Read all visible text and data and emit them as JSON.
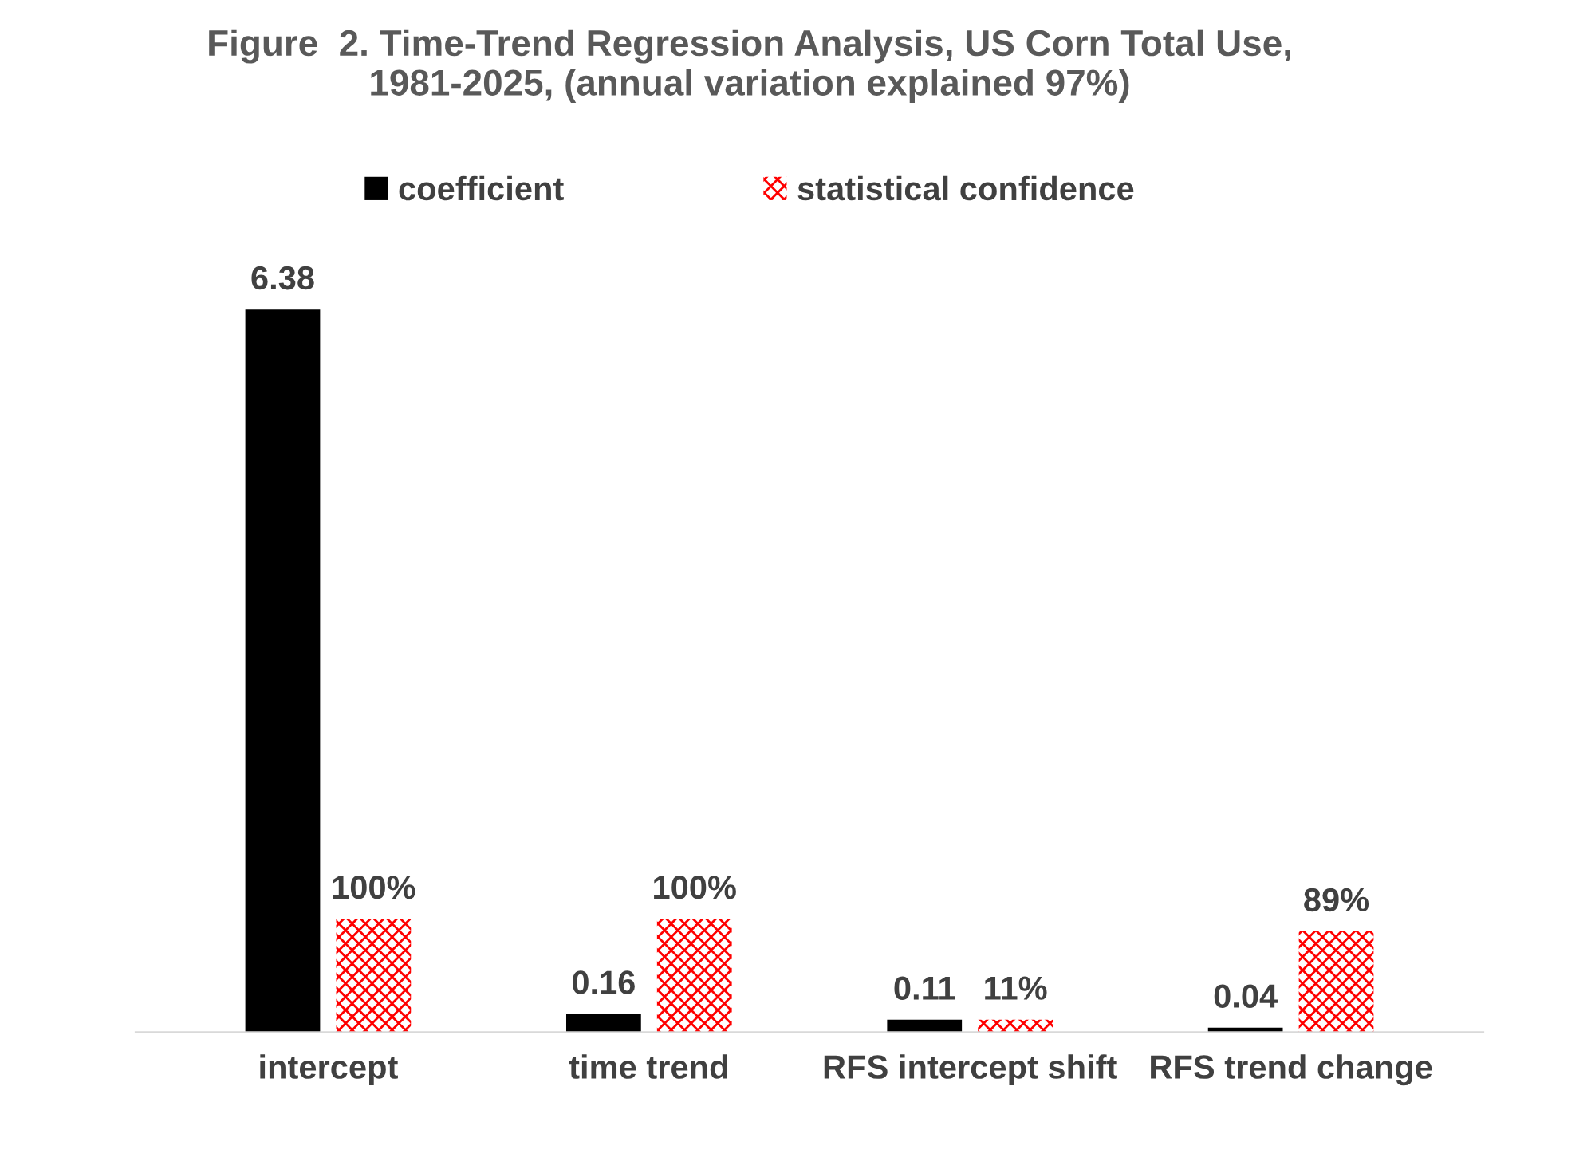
{
  "chart_data": {
    "type": "bar",
    "title": "Figure  2. Time-Trend Regression Analysis, US Corn Total Use,\n1981-2025, (annual variation explained 97%)",
    "categories": [
      "intercept",
      "time trend",
      "RFS intercept shift",
      "RFS trend change"
    ],
    "series": [
      {
        "name": "coefficient",
        "color": "#000000",
        "values": [
          6.38,
          0.16,
          0.11,
          0.04
        ],
        "value_labels": [
          "6.38",
          "0.16",
          "0.11",
          "0.04"
        ]
      },
      {
        "name": "statistical confidence",
        "color": "#ff0000",
        "values": [
          1.0,
          1.0,
          0.11,
          0.89
        ],
        "value_labels": [
          "100%",
          "100%",
          "11%",
          "89%"
        ]
      }
    ],
    "legend": "top",
    "tick_labels": "x"
  }
}
